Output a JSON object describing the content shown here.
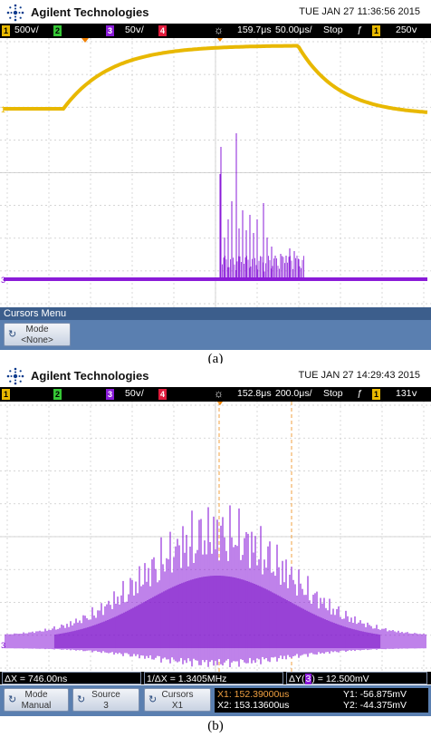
{
  "panel_a": {
    "brand": "Agilent Technologies",
    "datetime": "TUE JAN 27 11:36:56 2015",
    "status": {
      "ch1_num": "1",
      "ch1_scale": "500ⅴ/",
      "ch2_num": "2",
      "ch3_num": "3",
      "ch3_scale": "50ⅴ/",
      "ch4_num": "4",
      "time_ref": "159.7μs",
      "time_scale": "50.00μs/",
      "run_state": "Stop",
      "trig_slope": "ƒ",
      "trig_num": "1",
      "trig_level": "250ⅴ"
    },
    "menu_title": "Cursors Menu",
    "softkey_mode_title": "Mode",
    "softkey_mode_value": "<None>",
    "caption": "(a)"
  },
  "panel_b": {
    "brand": "Agilent Technologies",
    "datetime": "TUE JAN 27 14:29:43 2015",
    "status": {
      "ch1_num": "1",
      "ch2_num": "2",
      "ch3_num": "3",
      "ch3_scale": "50ⅴ/",
      "ch4_num": "4",
      "time_ref": "152.8μs",
      "time_scale": "200.0μs/",
      "run_state": "Stop",
      "trig_slope": "ƒ",
      "trig_num": "1",
      "trig_level": "131ⅴ"
    },
    "readout": {
      "delta_x": "ΔX = 746.00ns",
      "inv_delta_x": "1/ΔX = 1.3405MHz",
      "delta_y_prefix": "ΔY(",
      "delta_y_ch": "3",
      "delta_y_suffix": ") = 12.500mV"
    },
    "softkeys": {
      "mode_title": "Mode",
      "mode_value": "Manual",
      "source_title": "Source",
      "source_value": "3",
      "cursors_title": "Cursors",
      "cursors_value": "X1"
    },
    "cursor_values": {
      "x1": "X1: 152.39000us",
      "x2": "X2: 153.13600us",
      "y1": "Y1: -56.875mV",
      "y2": "Y2: -44.375mV"
    },
    "caption": "(b)"
  },
  "colors": {
    "ch1": "#e8b800",
    "ch2": "#35c635",
    "ch3": "#8a1bd8",
    "ch4": "#e01b3c",
    "grid": "#c9c9c9",
    "cursor": "#f0a040"
  }
}
